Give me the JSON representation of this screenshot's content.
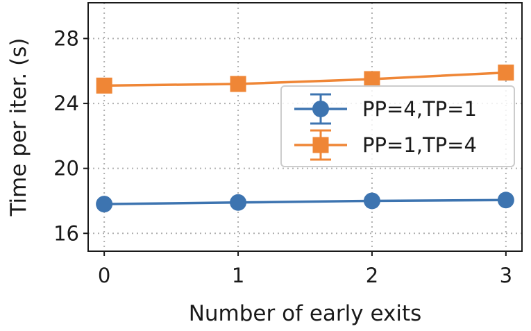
{
  "chart_data": {
    "type": "line",
    "title": "",
    "xlabel": "Number of early exits",
    "ylabel": "Time per iter. (s)",
    "x": [
      0,
      1,
      2,
      3
    ],
    "xticks": [
      0,
      1,
      2,
      3
    ],
    "xlim": [
      -0.12,
      3.12
    ],
    "yticks": [
      16,
      20,
      24,
      28
    ],
    "ylim": [
      14.9,
      30.2
    ],
    "grid": true,
    "legend_position": "center-right",
    "series": [
      {
        "name": "PP=4,TP=1",
        "values": [
          17.8,
          17.9,
          18.0,
          18.05
        ],
        "color": "#3d74b0",
        "marker": "circle"
      },
      {
        "name": "PP=1,TP=4",
        "values": [
          25.1,
          25.2,
          25.5,
          25.9
        ],
        "color": "#ef8636",
        "marker": "square"
      }
    ]
  }
}
